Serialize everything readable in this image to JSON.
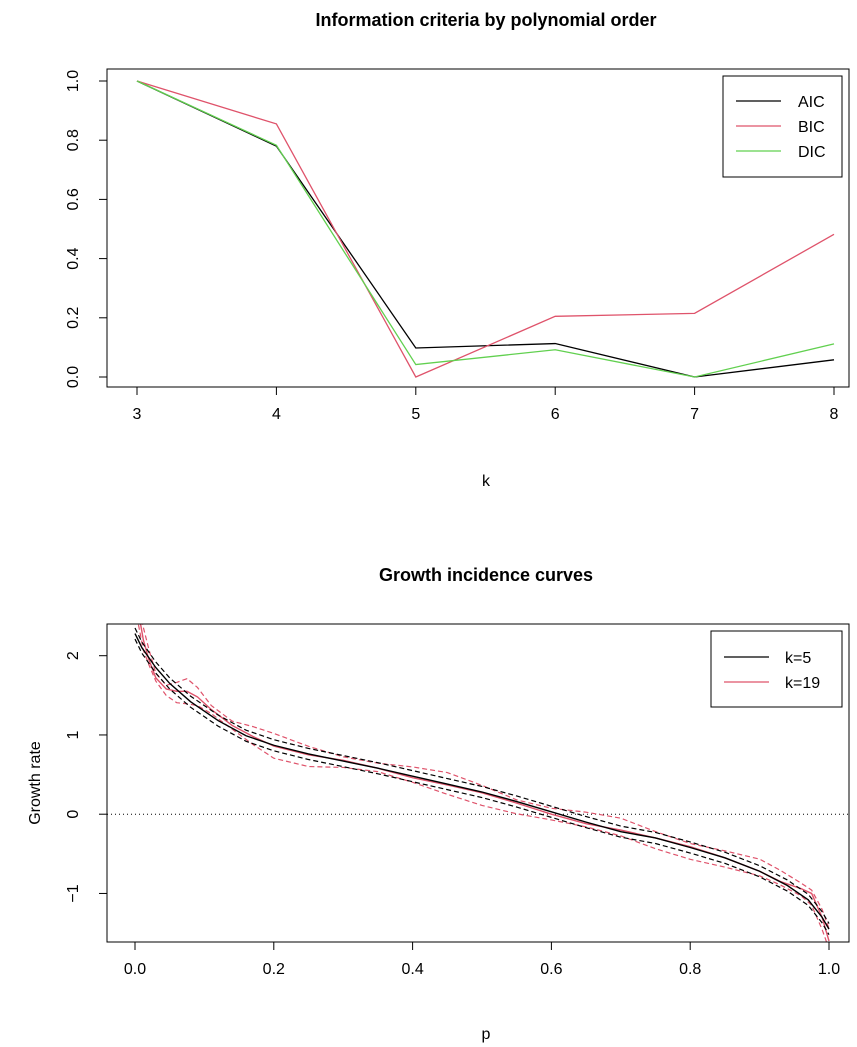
{
  "chart_data": [
    {
      "type": "line",
      "title": "Information criteria by polynomial order",
      "xlabel": "k",
      "ylabel": "",
      "xlim": [
        3,
        8
      ],
      "ylim": [
        0,
        1
      ],
      "x": [
        3,
        4,
        5,
        6,
        7,
        8
      ],
      "xticks": [
        "3",
        "4",
        "5",
        "6",
        "7",
        "8"
      ],
      "yticks": [
        "0.0",
        "0.2",
        "0.4",
        "0.6",
        "0.8",
        "1.0"
      ],
      "legend_position": "top-right",
      "series": [
        {
          "name": "AIC",
          "color": "#000000",
          "values": [
            1.0,
            0.78,
            0.098,
            0.113,
            0.0,
            0.058
          ]
        },
        {
          "name": "BIC",
          "color": "#DF536B",
          "values": [
            1.0,
            0.855,
            0.0,
            0.205,
            0.215,
            0.482
          ]
        },
        {
          "name": "DIC",
          "color": "#61D04F",
          "values": [
            1.0,
            0.783,
            0.042,
            0.092,
            0.0,
            0.112
          ]
        }
      ]
    },
    {
      "type": "line",
      "title": "Growth incidence curves",
      "xlabel": "p",
      "ylabel": "Growth rate",
      "xlim": [
        0,
        1
      ],
      "ylim": [
        -1.6,
        2.4
      ],
      "xticks": [
        "0.0",
        "0.2",
        "0.4",
        "0.6",
        "0.8",
        "1.0"
      ],
      "yticks": [
        "−1",
        "0",
        "1",
        "2"
      ],
      "reference_line": {
        "y": 0,
        "style": "dotted"
      },
      "legend_position": "top-right",
      "series": [
        {
          "name": "k=5",
          "color": "#000000",
          "x": [
            0.0,
            0.01,
            0.03,
            0.05,
            0.08,
            0.12,
            0.16,
            0.2,
            0.25,
            0.3,
            0.35,
            0.4,
            0.45,
            0.5,
            0.55,
            0.6,
            0.65,
            0.7,
            0.75,
            0.8,
            0.85,
            0.9,
            0.94,
            0.97,
            0.99,
            1.0
          ],
          "values": [
            2.28,
            2.1,
            1.85,
            1.65,
            1.42,
            1.18,
            0.99,
            0.87,
            0.76,
            0.67,
            0.58,
            0.48,
            0.38,
            0.28,
            0.16,
            0.03,
            -0.1,
            -0.22,
            -0.3,
            -0.42,
            -0.55,
            -0.72,
            -0.9,
            -1.08,
            -1.3,
            -1.45
          ],
          "band_width": 0.07
        },
        {
          "name": "k=19",
          "color": "#DF536B",
          "x": [
            0.005,
            0.012,
            0.02,
            0.03,
            0.045,
            0.06,
            0.075,
            0.09,
            0.11,
            0.14,
            0.17,
            0.2,
            0.25,
            0.3,
            0.35,
            0.4,
            0.45,
            0.5,
            0.55,
            0.6,
            0.65,
            0.7,
            0.75,
            0.8,
            0.85,
            0.9,
            0.93,
            0.96,
            0.975,
            0.99,
            1.0
          ],
          "values": [
            2.55,
            2.2,
            1.95,
            1.72,
            1.58,
            1.55,
            1.55,
            1.48,
            1.32,
            1.12,
            0.98,
            0.86,
            0.75,
            0.68,
            0.58,
            0.46,
            0.37,
            0.27,
            0.14,
            0.0,
            -0.12,
            -0.2,
            -0.3,
            -0.41,
            -0.55,
            -0.72,
            -0.85,
            -0.94,
            -1.0,
            -1.3,
            -1.6
          ],
          "band_width": 0.1
        }
      ]
    }
  ]
}
